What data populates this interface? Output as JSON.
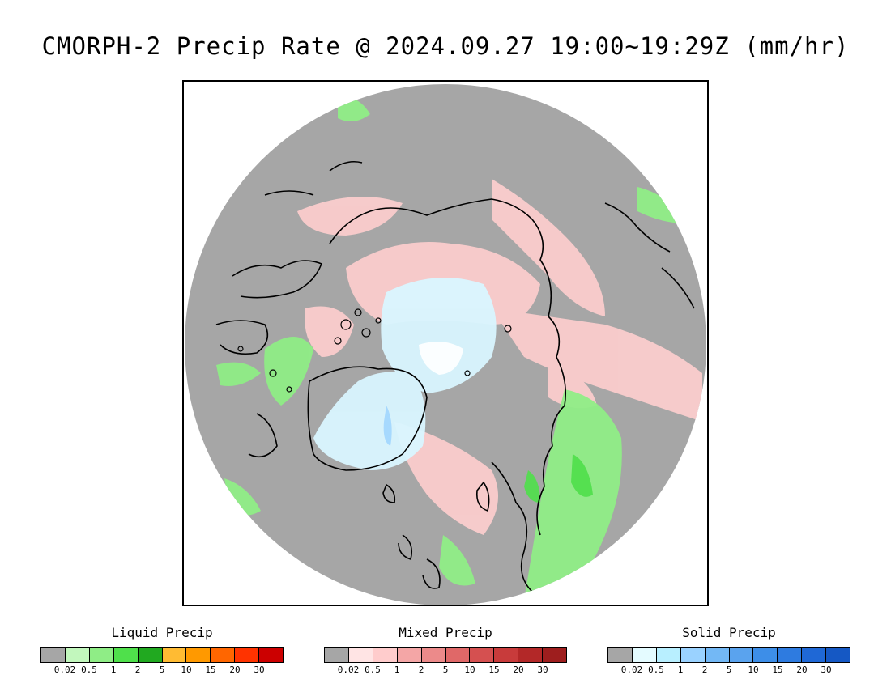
{
  "title": "CMORPH-2 Precip Rate @ 2024.09.27 19:00~19:29Z (mm/hr)",
  "map": {
    "projection": "north polar stereographic",
    "background_color": "#a6a6a6",
    "coastline_color": "#000000"
  },
  "legends": [
    {
      "id": "liquid",
      "title": "Liquid Precip",
      "colors": [
        "#a6a6a6",
        "#c2f7bd",
        "#8fed86",
        "#4fe04b",
        "#21a920",
        "#ffbb33",
        "#ff9900",
        "#ff6600",
        "#ff3300",
        "#cc0000"
      ],
      "ticks": [
        "0.02",
        "0.5",
        "1",
        "2",
        "5",
        "10",
        "15",
        "20",
        "30"
      ]
    },
    {
      "id": "mixed",
      "title": "Mixed Precip",
      "colors": [
        "#a6a6a6",
        "#ffe4e4",
        "#ffcccc",
        "#f4a6a6",
        "#ec8a8a",
        "#e06868",
        "#d55050",
        "#c83b3b",
        "#b32828",
        "#9e1e1e"
      ],
      "ticks": [
        "0.02",
        "0.5",
        "1",
        "2",
        "5",
        "10",
        "15",
        "20",
        "30"
      ]
    },
    {
      "id": "solid",
      "title": "Solid Precip",
      "colors": [
        "#a6a6a6",
        "#e4fbff",
        "#b8efff",
        "#9ad2ff",
        "#73b8f5",
        "#5aa3ee",
        "#3d8ee8",
        "#2e7be0",
        "#1f68d6",
        "#1558c4"
      ],
      "ticks": [
        "0.02",
        "0.5",
        "1",
        "2",
        "5",
        "10",
        "15",
        "20",
        "30"
      ]
    }
  ]
}
